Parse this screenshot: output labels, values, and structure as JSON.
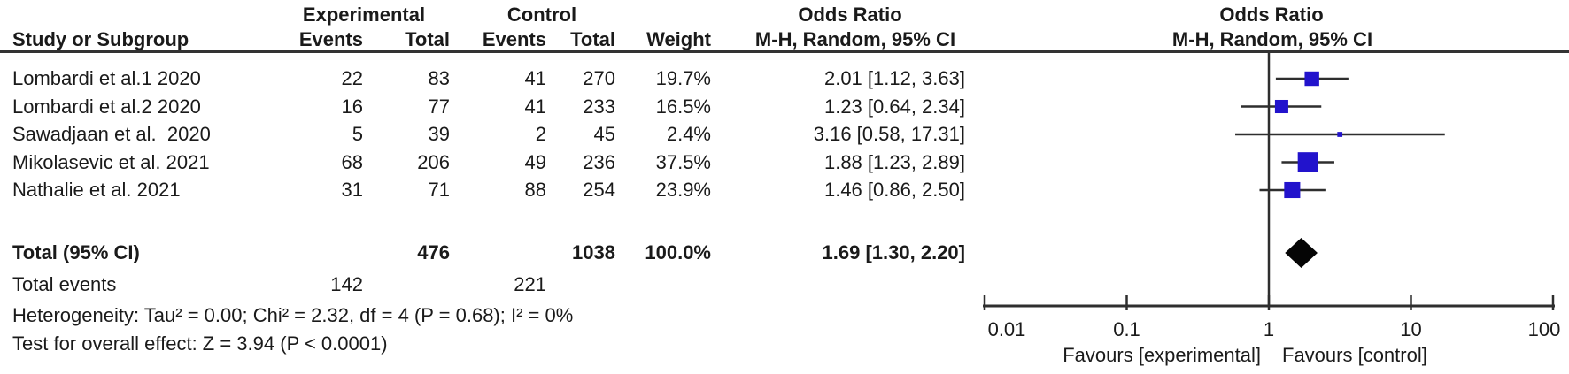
{
  "headers": {
    "study": "Study or Subgroup",
    "experimental": "Experimental",
    "control": "Control",
    "events": "Events",
    "total": "Total",
    "weight": "Weight",
    "or_col_title": "Odds Ratio",
    "or_col_subtitle": "M-H, Random, 95% CI",
    "plot_col_title": "Odds Ratio",
    "plot_col_subtitle": "M-H, Random, 95% CI"
  },
  "chart_data": {
    "type": "forest",
    "effect_measure": "Odds Ratio",
    "method": "M-H, Random, 95% CI",
    "studies": [
      {
        "name": "Lombardi et al.1 2020",
        "events_exp": 22,
        "total_exp": 83,
        "events_ctl": 41,
        "total_ctl": 270,
        "weight_pct": 19.7,
        "weight_label": "19.7%",
        "or": 2.01,
        "ci_low": 1.12,
        "ci_high": 3.63,
        "label": "2.01 [1.12, 3.63]"
      },
      {
        "name": "Lombardi et al.2 2020",
        "events_exp": 16,
        "total_exp": 77,
        "events_ctl": 41,
        "total_ctl": 233,
        "weight_pct": 16.5,
        "weight_label": "16.5%",
        "or": 1.23,
        "ci_low": 0.64,
        "ci_high": 2.34,
        "label": "1.23 [0.64, 2.34]"
      },
      {
        "name": "Sawadjaan et al.  2020",
        "events_exp": 5,
        "total_exp": 39,
        "events_ctl": 2,
        "total_ctl": 45,
        "weight_pct": 2.4,
        "weight_label": "2.4%",
        "or": 3.16,
        "ci_low": 0.58,
        "ci_high": 17.31,
        "label": "3.16 [0.58, 17.31]"
      },
      {
        "name": "Mikolasevic et al. 2021",
        "events_exp": 68,
        "total_exp": 206,
        "events_ctl": 49,
        "total_ctl": 236,
        "weight_pct": 37.5,
        "weight_label": "37.5%",
        "or": 1.88,
        "ci_low": 1.23,
        "ci_high": 2.89,
        "label": "1.88 [1.23, 2.89]"
      },
      {
        "name": "Nathalie et al. 2021",
        "events_exp": 31,
        "total_exp": 71,
        "events_ctl": 88,
        "total_ctl": 254,
        "weight_pct": 23.9,
        "weight_label": "23.9%",
        "or": 1.46,
        "ci_low": 0.86,
        "ci_high": 2.5,
        "label": "1.46 [0.86, 2.50]"
      }
    ],
    "total": {
      "label": "Total (95% CI)",
      "total_exp": 476,
      "total_ctl": 1038,
      "weight_pct": 100.0,
      "weight_label": "100.0%",
      "or": 1.69,
      "ci_low": 1.3,
      "ci_high": 2.2,
      "or_label": "1.69 [1.30, 2.20]"
    },
    "total_events": {
      "label": "Total events",
      "experimental": 142,
      "control": 221
    },
    "axis": {
      "scale": "log10",
      "min": 0.01,
      "max": 100,
      "null_line": 1,
      "ticks": [
        0.01,
        0.1,
        1,
        10,
        100
      ],
      "tick_labels": [
        "0.01",
        "0.1",
        "1",
        "10",
        "100"
      ]
    },
    "favours": {
      "left": "Favours [experimental]",
      "right": "Favours [control]"
    }
  },
  "footnotes": {
    "heterogeneity": "Heterogeneity: Tau² = 0.00; Chi² = 2.32, df = 4 (P = 0.68); I² = 0%",
    "overall_effect": "Test for overall effect: Z = 3.94 (P < 0.0001)"
  },
  "colors": {
    "marker_square": "#2213cc",
    "summary_diamond": "#050505",
    "line": "#2e2e2e",
    "text": "#1a1a1a",
    "rule": "#333333",
    "background": "#ffffff"
  }
}
